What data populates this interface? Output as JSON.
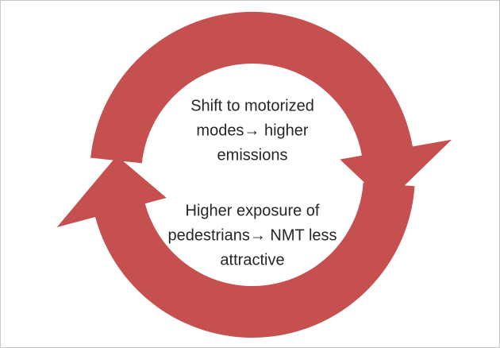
{
  "cycle": {
    "statements": [
      {
        "lines": [
          "Shift to motorized",
          "modes→ higher",
          "emissions"
        ]
      },
      {
        "lines": [
          "Higher exposure of",
          "pedestrians→ NMT less",
          "attractive"
        ]
      }
    ]
  }
}
